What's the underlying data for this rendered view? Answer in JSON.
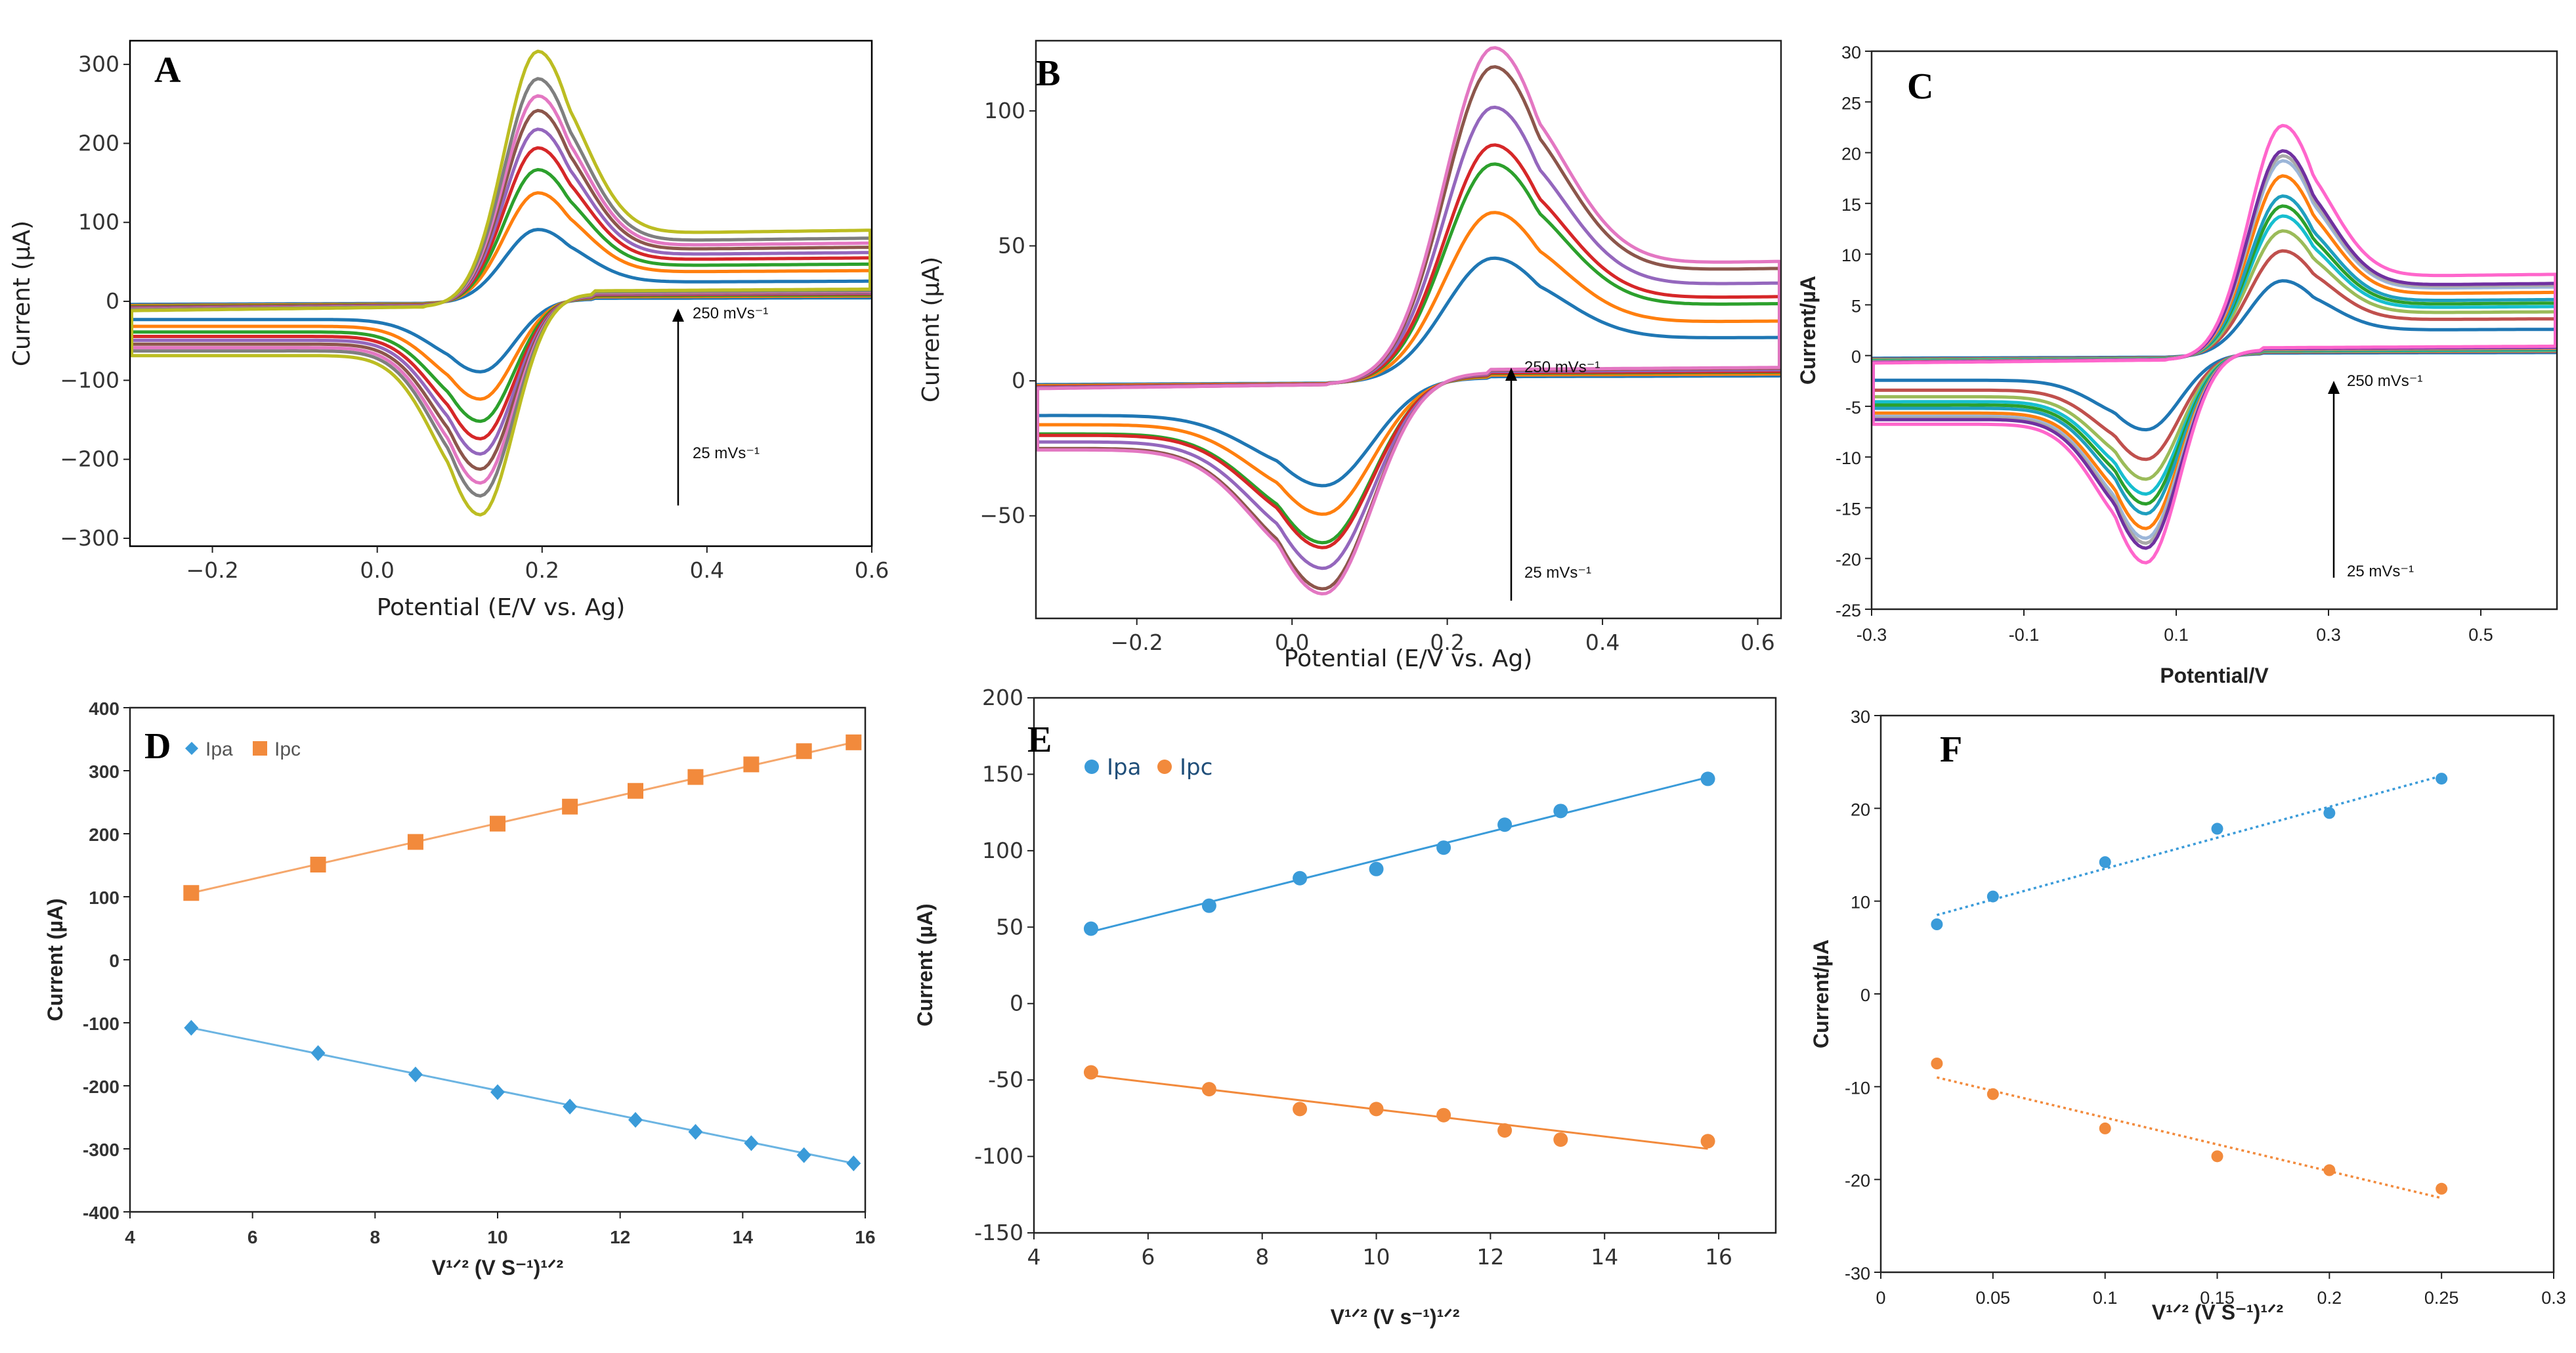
{
  "colors": {
    "cv_mpl": [
      "#1f77b4",
      "#ff7f0e",
      "#2ca02c",
      "#d62728",
      "#9467bd",
      "#8c564b",
      "#e377c2",
      "#7f7f7f",
      "#bcbd22"
    ],
    "cv_c": [
      "#1f77b4",
      "#c0504d",
      "#9bbb59",
      "#17becf",
      "#2ca02c",
      "#1f9fbf",
      "#ff7f0e",
      "#9cb6d9",
      "#a9a9a9",
      "#7030a0",
      "#ff66cc"
    ],
    "ipa": "#3a9bd9",
    "ipc": "#f28a3c"
  },
  "chart_data": [
    {
      "id": "A",
      "type": "line",
      "panel_label": "A",
      "xlabel": "Potential (E/V vs. Ag)",
      "ylabel": "Current (µA)",
      "xlim": [
        -0.3,
        0.6
      ],
      "ylim": [
        -310,
        330
      ],
      "xticks": [
        -0.2,
        0.0,
        0.2,
        0.4,
        0.6
      ],
      "xtick_labels": [
        "−0.2",
        "0.0",
        "0.2",
        "0.4",
        "0.6"
      ],
      "yticks": [
        -300,
        -200,
        -100,
        0,
        100,
        200,
        300
      ],
      "ytick_labels": [
        "−300",
        "−200",
        "−100",
        "0",
        "100",
        "200",
        "300"
      ],
      "annotation_top": "250 mVs⁻¹",
      "annotation_bottom": "25 mVs⁻¹",
      "cv": {
        "e0": 0.16,
        "sep": 0.07,
        "w": 0.055,
        "tail_frac": 0.28,
        "cap_frac": 0.12,
        "ipa": [
          93,
          140,
          170,
          198,
          222,
          246,
          265,
          287,
          322
        ],
        "ipc": [
          -92,
          -128,
          -157,
          -180,
          -200,
          -220,
          -238,
          -255,
          -280
        ]
      }
    },
    {
      "id": "B",
      "type": "line",
      "panel_label": "B",
      "xlabel": "Potential (E/V vs. Ag)",
      "ylabel": "Current (µA)",
      "xlim": [
        -0.33,
        0.63
      ],
      "ylim": [
        -88,
        126
      ],
      "xticks": [
        -0.2,
        0.0,
        0.2,
        0.4,
        0.6
      ],
      "xtick_labels": [
        "−0.2",
        "0.0",
        "0.2",
        "0.4",
        "0.6"
      ],
      "yticks": [
        -50,
        0,
        50,
        100
      ],
      "ytick_labels": [
        "−50",
        "0",
        "50",
        "100"
      ],
      "annotation_top": "250 mVs⁻¹",
      "annotation_bottom": "25 mVs⁻¹",
      "cv": {
        "e0": 0.15,
        "sep": 0.22,
        "w": 0.085,
        "tail_frac": 0.35,
        "cap_frac": 0.1,
        "ipa": [
          46,
          63,
          81,
          88,
          102,
          117,
          124
        ],
        "ipc": [
          -40,
          -51,
          -62,
          -64,
          -72,
          -80,
          -82
        ]
      }
    },
    {
      "id": "C",
      "type": "line",
      "panel_label": "C",
      "xlabel": "Potential/V",
      "ylabel": "Current/µA",
      "xlim": [
        -0.3,
        0.6
      ],
      "ylim": [
        -25,
        30
      ],
      "xticks": [
        -0.3,
        -0.1,
        0.1,
        0.3,
        0.5
      ],
      "xtick_labels": [
        "-0.3",
        "-0.1",
        "0.1",
        "0.3",
        "0.5"
      ],
      "yticks": [
        -25,
        -20,
        -15,
        -10,
        -5,
        0,
        5,
        10,
        15,
        20,
        25,
        30
      ],
      "ytick_labels": [
        "-25",
        "-20",
        "-15",
        "-10",
        "-5",
        "0",
        "5",
        "10",
        "15",
        "20",
        "25",
        "30"
      ],
      "annotation_top": "250 mVs⁻¹",
      "annotation_bottom": "25 mVs⁻¹",
      "cv": {
        "e0": 0.15,
        "sep": 0.18,
        "w": 0.06,
        "tail_frac": 0.35,
        "cap_frac": 0.1,
        "ipa": [
          7.5,
          10.5,
          12.5,
          14,
          15,
          16,
          18,
          19.5,
          20,
          20.5,
          23
        ],
        "ipc": [
          -7.5,
          -10.5,
          -12.5,
          -14,
          -15,
          -16,
          -17.5,
          -18.5,
          -19,
          -19.5,
          -21
        ]
      }
    },
    {
      "id": "D",
      "type": "scatter",
      "panel_label": "D",
      "xlabel": "V¹ᐟ² (V S⁻¹)¹ᐟ²",
      "ylabel": "Current (µA)",
      "xlim": [
        4,
        16
      ],
      "ylim": [
        -400,
        400
      ],
      "xticks": [
        4,
        6,
        8,
        10,
        12,
        14,
        16
      ],
      "xtick_labels": [
        "4",
        "6",
        "8",
        "10",
        "12",
        "14",
        "16"
      ],
      "yticks": [
        -400,
        -300,
        -200,
        -100,
        0,
        100,
        200,
        300,
        400
      ],
      "ytick_labels": [
        "-400",
        "-300",
        "-200",
        "-100",
        "0",
        "100",
        "200",
        "300",
        "400"
      ],
      "legend": [
        "Ipa",
        "Ipc"
      ],
      "series": [
        {
          "name": "Ipa",
          "x": [
            5.0,
            7.07,
            8.66,
            10.0,
            11.18,
            12.25,
            13.23,
            14.14,
            15.0,
            15.81
          ],
          "y": [
            -108,
            -148,
            -182,
            -210,
            -233,
            -254,
            -273,
            -291,
            -310,
            -323
          ],
          "fit": [
            -108,
            -323
          ]
        },
        {
          "name": "Ipc",
          "x": [
            5.0,
            7.07,
            8.66,
            10.0,
            11.18,
            12.25,
            13.23,
            14.14,
            15.0,
            15.81
          ],
          "y": [
            106,
            151,
            187,
            216,
            243,
            268,
            290,
            310,
            331,
            345
          ],
          "fit": [
            106,
            345
          ]
        }
      ]
    },
    {
      "id": "E",
      "type": "scatter",
      "panel_label": "E",
      "xlabel": "V¹ᐟ² (V s⁻¹)¹ᐟ²",
      "ylabel": "Current (µA)",
      "xlim": [
        4,
        17
      ],
      "ylim": [
        -150,
        200
      ],
      "xticks": [
        4,
        6,
        8,
        10,
        12,
        14,
        16
      ],
      "xtick_labels": [
        "4",
        "6",
        "8",
        "10",
        "12",
        "14",
        "16"
      ],
      "yticks": [
        -150,
        -100,
        -50,
        0,
        50,
        100,
        150,
        200
      ],
      "ytick_labels": [
        "-150",
        "-100",
        "-50",
        "0",
        "50",
        "100",
        "150",
        "200"
      ],
      "legend": [
        "Ipa",
        "Ipc"
      ],
      "series": [
        {
          "name": "Ipa",
          "x": [
            5.0,
            7.07,
            8.66,
            10.0,
            11.18,
            12.25,
            13.23,
            15.81
          ],
          "y": [
            49,
            64,
            82,
            88,
            102,
            117,
            126,
            147
          ],
          "fit": [
            47,
            148
          ]
        },
        {
          "name": "Ipc",
          "x": [
            5.0,
            7.07,
            8.66,
            10.0,
            11.18,
            12.25,
            13.23,
            15.81
          ],
          "y": [
            -45,
            -56,
            -69,
            -69,
            -73,
            -83,
            -89,
            -90
          ],
          "fit": [
            -47,
            -95
          ]
        }
      ]
    },
    {
      "id": "F",
      "type": "scatter",
      "panel_label": "F",
      "xlabel": "V¹ᐟ² (V S⁻¹)¹ᐟ²",
      "ylabel": "Current/µA",
      "xlim": [
        0,
        0.3
      ],
      "ylim": [
        -30,
        30
      ],
      "xticks": [
        0,
        0.05,
        0.1,
        0.15,
        0.2,
        0.25,
        0.3
      ],
      "xtick_labels": [
        "0",
        "0.05",
        "0.1",
        "0.15",
        "0.2",
        "0.25",
        "0.3"
      ],
      "yticks": [
        -30,
        -20,
        -10,
        0,
        10,
        20,
        30
      ],
      "ytick_labels": [
        "-30",
        "-20",
        "-10",
        "0",
        "10",
        "20",
        "30"
      ],
      "series": [
        {
          "name": "Ipa",
          "x": [
            0.025,
            0.05,
            0.1,
            0.15,
            0.2,
            0.25
          ],
          "y": [
            7.5,
            10.5,
            14.2,
            17.8,
            19.5,
            23.2
          ],
          "fit": [
            8.5,
            23.5
          ]
        },
        {
          "name": "Ipc",
          "x": [
            0.025,
            0.05,
            0.1,
            0.15,
            0.2,
            0.25
          ],
          "y": [
            -7.5,
            -10.8,
            -14.5,
            -17.5,
            -19,
            -21
          ],
          "fit": [
            -9,
            -22
          ]
        }
      ]
    }
  ]
}
